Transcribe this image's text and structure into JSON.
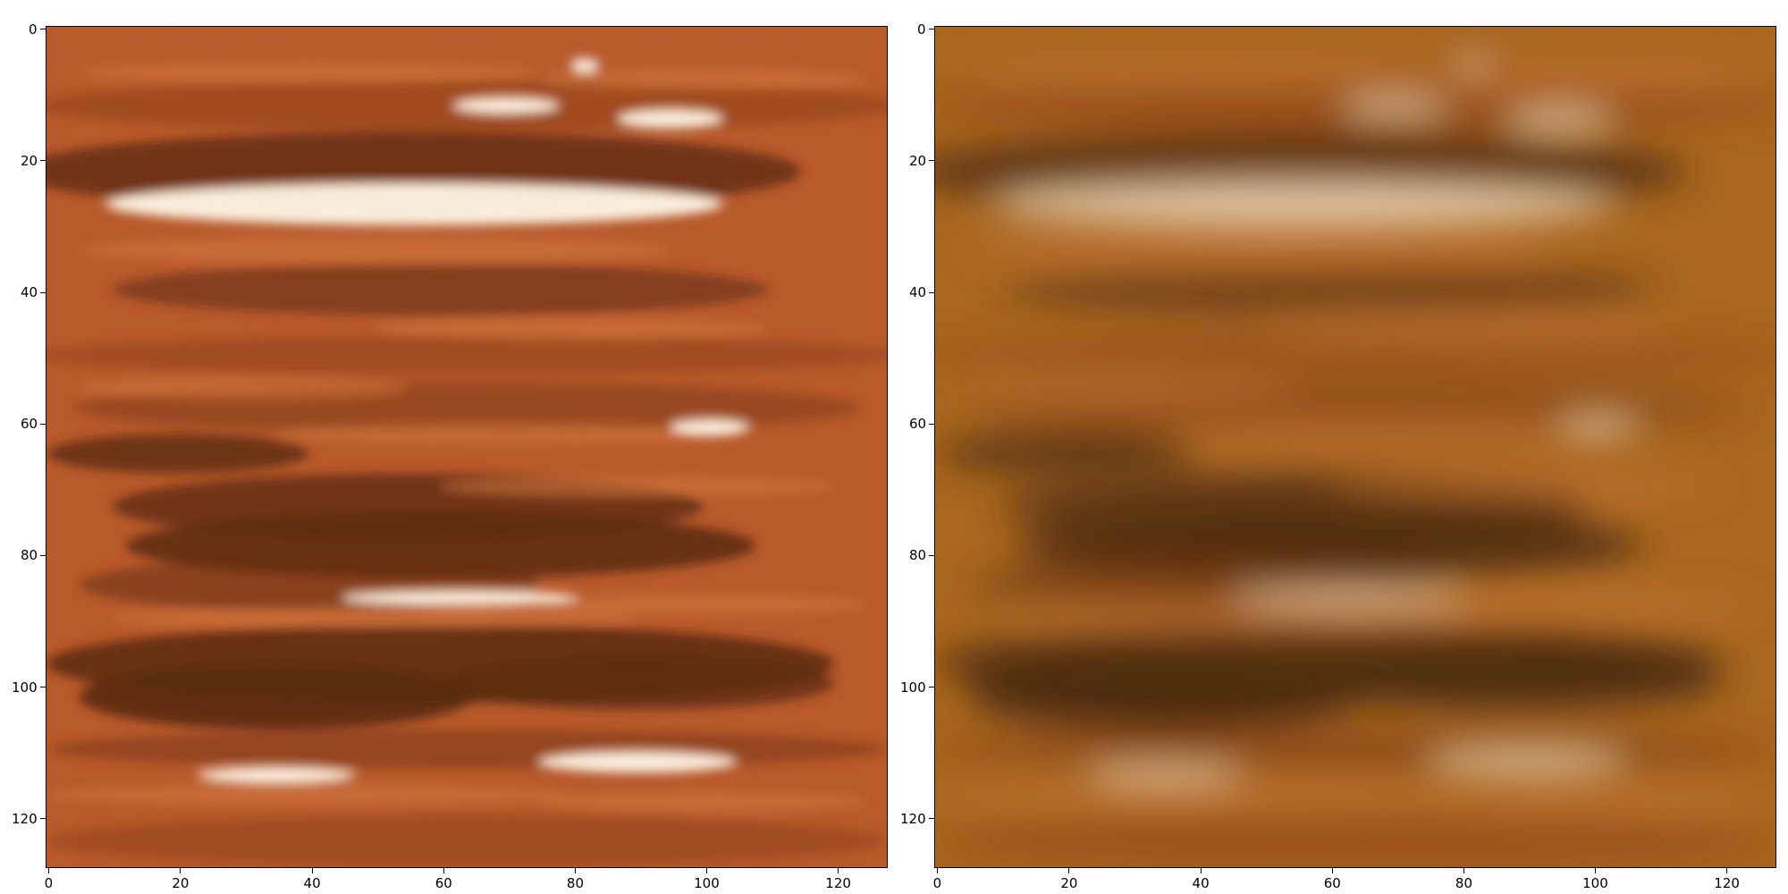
{
  "figure": {
    "panels": [
      {
        "name": "left-image-panel",
        "image_size": 128,
        "x_ticks": [
          "0",
          "20",
          "40",
          "60",
          "80",
          "100",
          "120"
        ],
        "y_ticks": [
          "0",
          "20",
          "40",
          "60",
          "80",
          "100",
          "120"
        ],
        "colors": {
          "base": "#B95A2C",
          "dark": "#5A2A12",
          "highlight": "#FFF6E6"
        },
        "filter": "none"
      },
      {
        "name": "right-image-panel",
        "image_size": 128,
        "x_ticks": [
          "0",
          "20",
          "40",
          "60",
          "80",
          "100",
          "120"
        ],
        "y_ticks": [
          "0",
          "20",
          "40",
          "60",
          "80",
          "100",
          "120"
        ],
        "colors": {
          "base": "#A9671F",
          "dark": "#4A2A0E",
          "highlight": "#E8CFAE"
        },
        "filter": "blur"
      }
    ]
  }
}
